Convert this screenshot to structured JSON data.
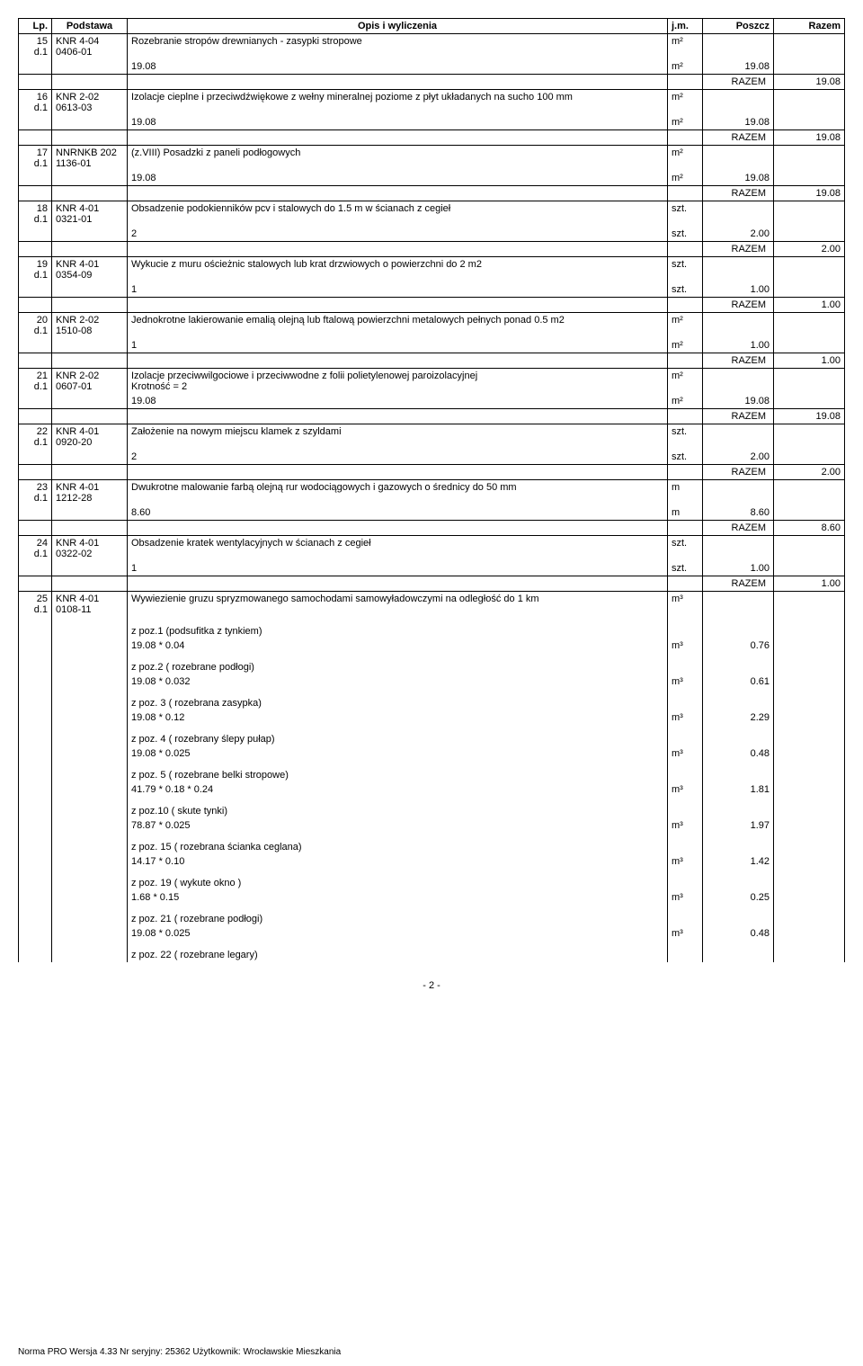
{
  "headers": {
    "lp": "Lp.",
    "podstawa": "Podstawa",
    "opis": "Opis i wyliczenia",
    "jm": "j.m.",
    "poszcz": "Poszcz",
    "razem": "Razem"
  },
  "rows": [
    {
      "lp": "15",
      "d": "d.1",
      "pod": "KNR 4-04 0406-01",
      "opis": "Rozebranie stropów drewnianych - zasypki stropowe",
      "jm": "m²",
      "calc": "19.08",
      "calc_jm": "m²",
      "calc_val": "19.08",
      "razem_label": "RAZEM",
      "razem_val": "19.08"
    },
    {
      "lp": "16",
      "d": "d.1",
      "pod": "KNR 2-02 0613-03",
      "opis": "Izolacje cieplne i przeciwdźwiękowe z wełny mineralnej poziome z płyt układanych na sucho 100 mm",
      "jm": "m²",
      "calc": "19.08",
      "calc_jm": "m²",
      "calc_val": "19.08",
      "razem_label": "RAZEM",
      "razem_val": "19.08"
    },
    {
      "lp": "17",
      "d": "d.1",
      "pod": "NNRNKB 202 1136-01",
      "opis": "(z.VIII) Posadzki z paneli podłogowych",
      "jm": "m²",
      "calc": "19.08",
      "calc_jm": "m²",
      "calc_val": "19.08",
      "razem_label": "RAZEM",
      "razem_val": "19.08"
    },
    {
      "lp": "18",
      "d": "d.1",
      "pod": "KNR 4-01 0321-01",
      "opis": "Obsadzenie podokienników pcv i  stalowych do 1.5 m w ścianach z cegieł",
      "jm": "szt.",
      "calc": "2",
      "calc_jm": "szt.",
      "calc_val": "2.00",
      "razem_label": "RAZEM",
      "razem_val": "2.00"
    },
    {
      "lp": "19",
      "d": "d.1",
      "pod": "KNR 4-01 0354-09",
      "opis": "Wykucie z muru ościeżnic stalowych lub krat drzwiowych o powierzchni do 2 m2",
      "jm": "szt.",
      "calc": "1",
      "calc_jm": "szt.",
      "calc_val": "1.00",
      "razem_label": "RAZEM",
      "razem_val": "1.00"
    },
    {
      "lp": "20",
      "d": "d.1",
      "pod": "KNR 2-02 1510-08",
      "opis": "Jednokrotne lakierowanie emalią olejną lub ftalową powierzchni metalowych pełnych ponad 0.5 m2",
      "jm": "m²",
      "calc": "1",
      "calc_jm": "m²",
      "calc_val": "1.00",
      "razem_label": "RAZEM",
      "razem_val": "1.00"
    },
    {
      "lp": "21",
      "d": "d.1",
      "pod": "KNR 2-02 0607-01",
      "opis": "Izolacje przeciwwilgociowe i przeciwwodne z folii polietylenowej  paroizolacyjnej\nKrotność = 2",
      "jm": "m²",
      "calc": "19.08",
      "calc_jm": "m²",
      "calc_val": "19.08",
      "razem_label": "RAZEM",
      "razem_val": "19.08"
    },
    {
      "lp": "22",
      "d": "d.1",
      "pod": "KNR 4-01 0920-20",
      "opis": "Założenie na nowym miejscu klamek z szyldami",
      "jm": "szt.",
      "calc": "2",
      "calc_jm": "szt.",
      "calc_val": "2.00",
      "razem_label": "RAZEM",
      "razem_val": "2.00"
    },
    {
      "lp": "23",
      "d": "d.1",
      "pod": "KNR 4-01 1212-28",
      "opis": "Dwukrotne malowanie farbą olejną rur wodociągowych i gazowych o średnicy do 50 mm",
      "jm": "m",
      "calc": "8.60",
      "calc_jm": "m",
      "calc_val": "8.60",
      "razem_label": "RAZEM",
      "razem_val": "8.60"
    },
    {
      "lp": "24",
      "d": "d.1",
      "pod": "KNR 4-01 0322-02",
      "opis": "Obsadzenie kratek wentylacyjnych w ścianach z cegieł",
      "jm": "szt.",
      "calc": "1",
      "calc_jm": "szt.",
      "calc_val": "1.00",
      "razem_label": "RAZEM",
      "razem_val": "1.00"
    },
    {
      "lp": "25",
      "d": "d.1",
      "pod": "KNR 4-01 0108-11",
      "opis": "Wywiezienie gruzu spryzmowanego samochodami samowyładowczymi na odległość do 1 km",
      "jm": "m³"
    }
  ],
  "poz": [
    {
      "label": "z poz.1 (podsufitka  z  tynkiem)",
      "calc": "19.08 * 0.04",
      "jm": "m³",
      "val": "0.76"
    },
    {
      "label": "z  poz.2 ( rozebrane  podłogi)",
      "calc": "19.08  *  0.032",
      "jm": "m³",
      "val": "0.61"
    },
    {
      "label": "z  poz. 3 ( rozebrana zasypka)",
      "calc": "19.08  *  0.12",
      "jm": "m³",
      "val": "2.29"
    },
    {
      "label": "z  poz. 4 ( rozebrany ślepy pułap)",
      "calc": "19.08  *  0.025",
      "jm": "m³",
      "val": "0.48"
    },
    {
      "label": "z  poz. 5 ( rozebrane  belki stropowe)",
      "calc": "41.79  *  0.18 * 0.24",
      "jm": "m³",
      "val": "1.81"
    },
    {
      "label": "z  poz.10 ( skute   tynki)",
      "calc": "78.87  *  0.025",
      "jm": "m³",
      "val": "1.97"
    },
    {
      "label": "z  poz. 15 ( rozebrana ścianka  ceglana)",
      "calc": "14.17  *  0.10",
      "jm": "m³",
      "val": "1.42"
    },
    {
      "label": "z  poz. 19 ( wykute  okno )",
      "calc": " 1.68  *  0.15",
      "jm": "m³",
      "val": "0.25"
    },
    {
      "label": "z  poz. 21 ( rozebrane  podłogi)",
      "calc": "19.08  *  0.025",
      "jm": "m³",
      "val": "0.48"
    },
    {
      "label": "z poz. 22 ( rozebrane  legary)",
      "calc": "",
      "jm": "",
      "val": ""
    }
  ],
  "page_num": "- 2 -",
  "footer": "Norma PRO Wersja 4.33 Nr seryjny: 25362 Użytkownik: Wrocławskie Mieszkania"
}
